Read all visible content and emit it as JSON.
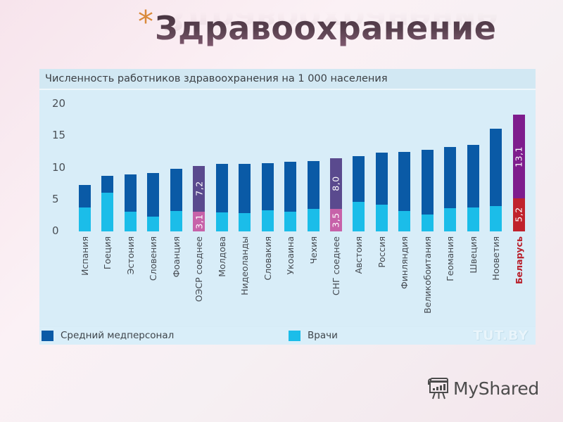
{
  "slide": {
    "title_bullet": "*",
    "title": "Здравоохранение"
  },
  "panel": {
    "header": "Численность работников здравоохранения на 1 000 населения",
    "watermark": "TUT.BY"
  },
  "legend": {
    "items": [
      {
        "label": "Средний медперсонал",
        "color": "#0a5aa6"
      },
      {
        "label": "Врачи",
        "color": "#1bbde9"
      }
    ]
  },
  "branding": {
    "logo_text": "MyShared",
    "logo_icon": "presentation-board-icon"
  },
  "colors": {
    "nurses": "#0a5aa6",
    "doctors": "#1bbde9",
    "avg_nurses": "#5a4a8e",
    "avg_doctors": "#c762a9",
    "belarus_nurses": "#7e1c8d",
    "belarus_doctors": "#c0222c",
    "plot_bg": "#d8edf8"
  },
  "chart_data": {
    "type": "bar",
    "stacked": true,
    "title": "Численность работников здравоохранения на 1 000 населения",
    "xlabel": "",
    "ylabel": "",
    "ylim": [
      0,
      20
    ],
    "yticks": [
      0,
      5,
      10,
      15,
      20
    ],
    "grid": false,
    "legend_position": "bottom",
    "categories": [
      "Испания",
      "Греция",
      "Эстония",
      "Словения",
      "Франция",
      "ОЭСР среднее",
      "Молдова",
      "Нидерланды",
      "Словакия",
      "Украина",
      "Чехия",
      "СНГ среднее",
      "Австрия",
      "Россия",
      "Финляндия",
      "Великобритания",
      "Германия",
      "Швеция",
      "Норвегия",
      "Беларусь"
    ],
    "series": [
      {
        "name": "Врачи",
        "values": [
          3.8,
          6.1,
          3.1,
          2.3,
          3.2,
          3.1,
          3.0,
          2.9,
          3.3,
          3.1,
          3.5,
          3.5,
          4.6,
          4.2,
          3.2,
          2.7,
          3.7,
          3.8,
          4.0,
          5.2
        ]
      },
      {
        "name": "Средний медперсонал",
        "values": [
          3.5,
          2.6,
          5.9,
          6.9,
          6.6,
          7.2,
          7.6,
          7.7,
          7.4,
          7.8,
          7.6,
          8.0,
          7.2,
          8.2,
          9.3,
          10.1,
          9.6,
          9.8,
          12.1,
          13.1
        ]
      }
    ],
    "data_labels": [
      {
        "category": "ОЭСР среднее",
        "Врачи": "3,1",
        "Средний медперсонал": "7,2"
      },
      {
        "category": "СНГ среднее",
        "Врачи": "3,5",
        "Средний медперсонал": "8,0"
      },
      {
        "category": "Беларусь",
        "Врачи": "5,2",
        "Средний медперсонал": "13,1"
      }
    ],
    "highlighted": [
      "ОЭСР среднее",
      "СНГ среднее",
      "Беларусь"
    ],
    "display_labels": [
      "Испания",
      "Гоеция",
      "Эстония",
      "Словения",
      "Фоанция",
      "ОЭСР соеднее",
      "Молдова",
      "Нидеоланды",
      "Словакия",
      "Укоаина",
      "Чехия",
      "СНГ соеднее",
      "Австоия",
      "Россия",
      "Финляндия",
      "Великобоитания",
      "Геомания",
      "Швеция",
      "Нооветия",
      "Беларусь"
    ]
  }
}
